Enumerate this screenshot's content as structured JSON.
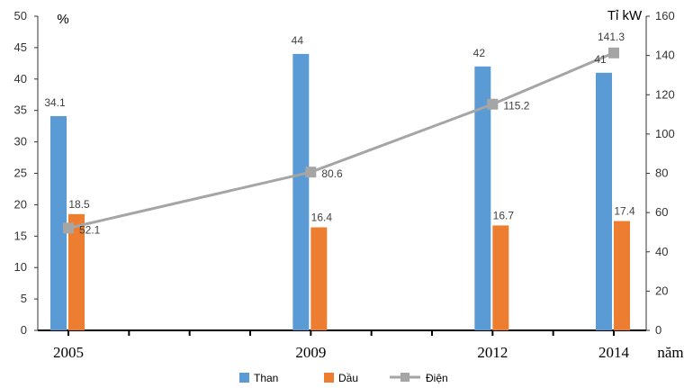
{
  "chart_data": {
    "type": "bar",
    "categories": [
      "2005",
      "2009",
      "2012",
      "2014"
    ],
    "x_positions": [
      2005,
      2009,
      2012,
      2014
    ],
    "xlabel": "năm",
    "y_left": {
      "unit": "%",
      "ylim": [
        0,
        50
      ],
      "ticks": [
        "0",
        "5",
        "10",
        "15",
        "20",
        "25",
        "30",
        "35",
        "40",
        "45",
        "50"
      ]
    },
    "y_right": {
      "unit": "Tỉ kW",
      "ylim": [
        0,
        160
      ],
      "ticks": [
        "0",
        "20",
        "40",
        "60",
        "80",
        "100",
        "120",
        "140",
        "160"
      ]
    },
    "series": [
      {
        "name": "Than",
        "type": "bar",
        "axis": "left",
        "color": "#5B9BD5",
        "values": [
          34.1,
          44,
          42,
          41
        ],
        "labels": [
          "34.1",
          "44",
          "42",
          "41"
        ]
      },
      {
        "name": "Dầu",
        "type": "bar",
        "axis": "left",
        "color": "#ED7D31",
        "values": [
          18.5,
          16.4,
          16.7,
          17.4
        ],
        "labels": [
          "18.5",
          "16.4",
          "16.7",
          "17.4"
        ]
      },
      {
        "name": "Điện",
        "type": "line",
        "axis": "right",
        "color": "#A5A5A5",
        "marker": "square",
        "values": [
          52.1,
          80.6,
          115.2,
          141.3
        ],
        "labels": [
          "52.1",
          "80.6",
          "115.2",
          "141.3"
        ]
      }
    ],
    "grid": false,
    "legend_position": "bottom-center"
  }
}
